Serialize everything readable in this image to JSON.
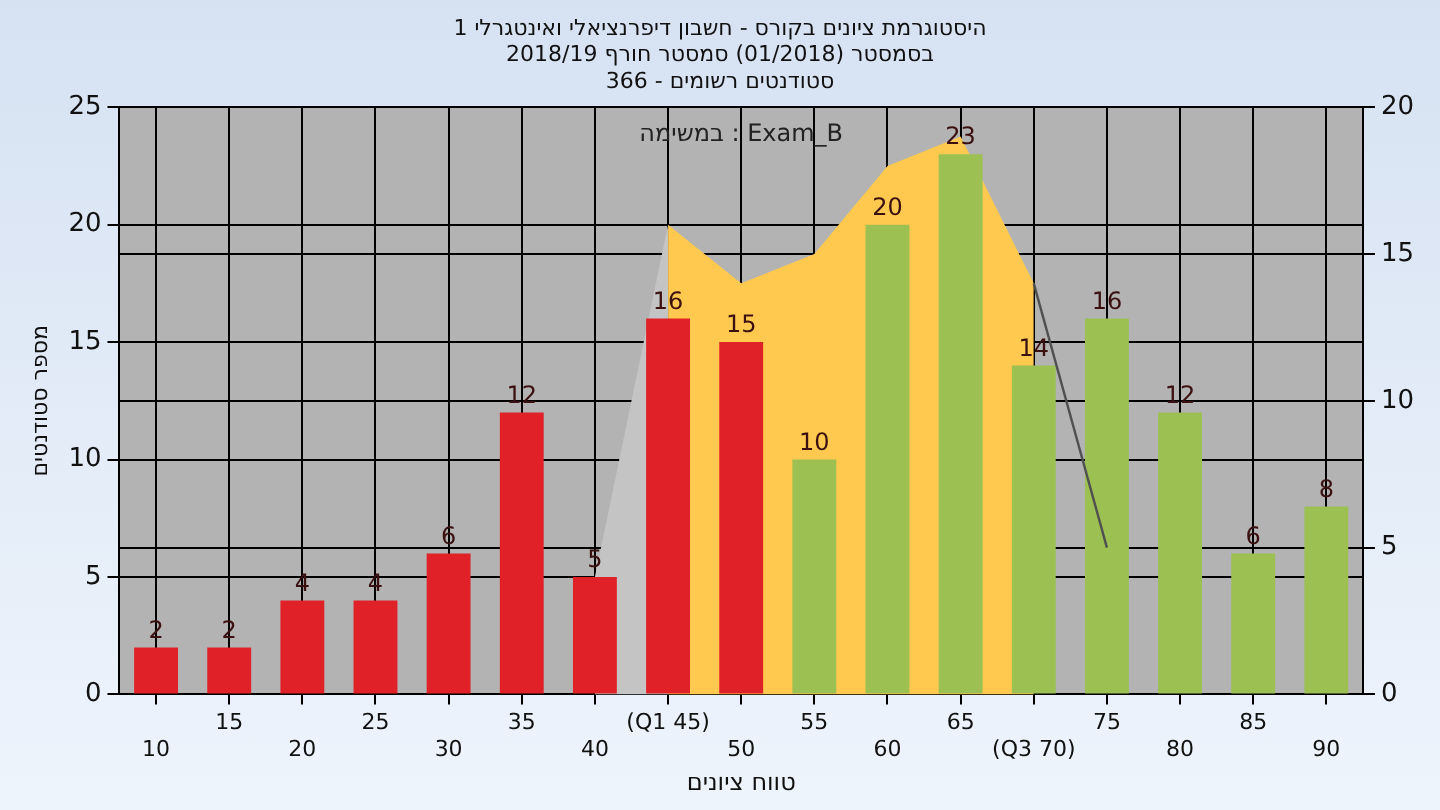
{
  "chart_data": {
    "type": "bar",
    "title": [
      "היסטוגרמת ציונים בקורס - חשבון דיפרנציאלי ואינטגרלי 1",
      "בסמסטר (01/2018) סמסטר חורף 2018/19",
      "סטודנטים רשומים - 366"
    ],
    "xlabel": "טווח ציונים",
    "ylabel": "מספר סטודנטים",
    "annotations": [
      "במשימה : Exam_B"
    ],
    "categories": [
      "10",
      "15",
      "20",
      "25",
      "30",
      "35",
      "40",
      "(Q1 45)",
      "50",
      "55",
      "60",
      "65",
      "(Q3 70)",
      "75",
      "80",
      "85",
      "90"
    ],
    "series": [
      {
        "type": "area",
        "color": "#c4c4c4",
        "axis": "y2",
        "values": [
          null,
          null,
          null,
          null,
          null,
          null,
          4,
          16,
          null,
          null,
          null,
          null,
          null,
          null,
          null,
          null,
          null
        ]
      },
      {
        "type": "area",
        "color": "#ffc94f",
        "axis": "y2",
        "values": [
          null,
          null,
          null,
          null,
          null,
          null,
          null,
          16,
          14,
          15,
          18,
          19,
          14,
          null,
          null,
          null,
          null
        ]
      },
      {
        "type": "line",
        "color": "#505050",
        "axis": "y2",
        "values": [
          null,
          null,
          null,
          null,
          null,
          null,
          null,
          null,
          null,
          null,
          null,
          null,
          14,
          5,
          null,
          null,
          null
        ]
      },
      {
        "value_labels": [
          "2",
          "2",
          "4",
          "4",
          "6",
          "12",
          "5",
          "16",
          "15",
          "10",
          "20",
          "23",
          "14",
          "16",
          "12",
          "6",
          "8"
        ],
        "colors": [
          "#e02228",
          "#e02228",
          "#e02228",
          "#e02228",
          "#e02228",
          "#e02228",
          "#e02228",
          "#e02228",
          "#e02228",
          "#9cc052",
          "#9cc052",
          "#9cc052",
          "#9cc052",
          "#9cc052",
          "#9cc052",
          "#9cc052",
          "#9cc052"
        ],
        "values": [
          2,
          2,
          4,
          4,
          6,
          12,
          5,
          16,
          15,
          10,
          20,
          23,
          14,
          16,
          12,
          6,
          8
        ]
      }
    ],
    "ylim": [
      0,
      25
    ],
    "yticks": [
      0,
      5,
      10,
      15,
      20,
      25
    ],
    "y2lim": [
      0,
      20
    ],
    "y2ticks": [
      0,
      5,
      10,
      15,
      20
    ],
    "grid": true,
    "legend": false
  }
}
